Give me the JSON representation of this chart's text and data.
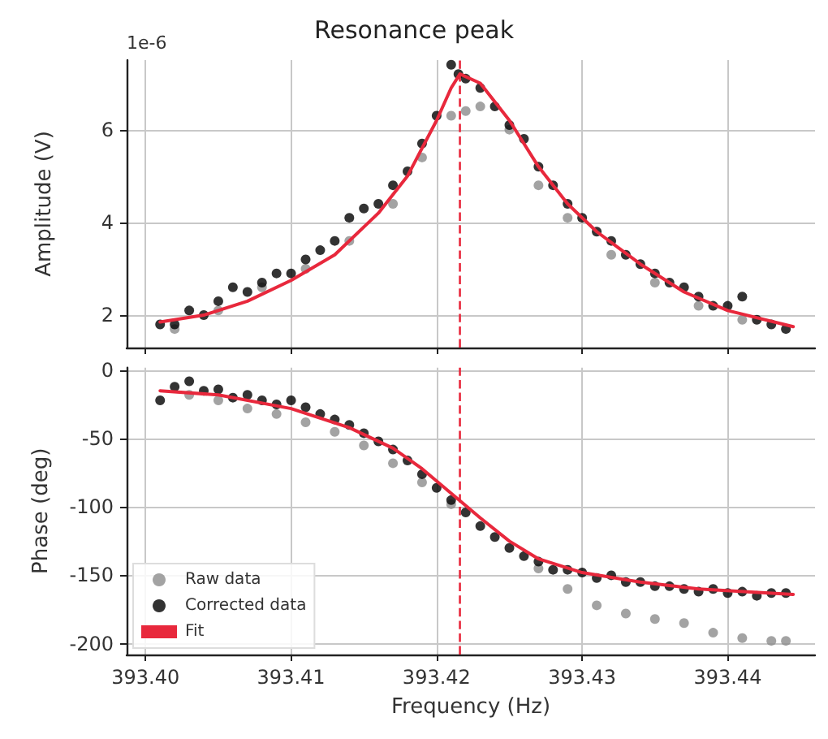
{
  "chart_data": [
    {
      "type": "scatter",
      "title": "Resonance peak",
      "ylabel": "Amplitude (V)",
      "annotations": [
        "1e-6"
      ],
      "xlim": [
        393.3987,
        393.446
      ],
      "ylim": [
        1.3,
        7.5
      ],
      "xticks": [
        393.4,
        393.41,
        393.42,
        393.43,
        393.44
      ],
      "yticks": [
        2,
        4,
        6
      ],
      "tick_labels": "y",
      "grid": true,
      "ref_lines": [
        {
          "axis": "x",
          "value": 393.4216,
          "color": "#e8283c",
          "line_style": "dashed"
        }
      ],
      "series": [
        {
          "color": "#8c8c8c",
          "marker": "circle",
          "x": [
            393.402,
            393.405,
            393.408,
            393.411,
            393.414,
            393.417,
            393.419,
            393.421,
            393.422,
            393.423,
            393.425,
            393.427,
            393.429,
            393.432,
            393.435,
            393.438,
            393.441
          ],
          "values": [
            1.7,
            2.1,
            2.6,
            3.0,
            3.6,
            4.4,
            5.4,
            6.3,
            6.4,
            6.5,
            6.0,
            4.8,
            4.1,
            3.3,
            2.7,
            2.2,
            1.9
          ]
        },
        {
          "color": "#000000",
          "marker": "circle",
          "x": [
            393.401,
            393.402,
            393.403,
            393.404,
            393.405,
            393.406,
            393.407,
            393.408,
            393.409,
            393.41,
            393.411,
            393.412,
            393.413,
            393.414,
            393.415,
            393.416,
            393.417,
            393.418,
            393.419,
            393.42,
            393.421,
            393.4215,
            393.422,
            393.423,
            393.424,
            393.425,
            393.426,
            393.427,
            393.428,
            393.429,
            393.43,
            393.431,
            393.432,
            393.433,
            393.434,
            393.435,
            393.436,
            393.437,
            393.438,
            393.439,
            393.44,
            393.441,
            393.442,
            393.443,
            393.444
          ],
          "values": [
            1.8,
            1.8,
            2.1,
            2.0,
            2.3,
            2.6,
            2.5,
            2.7,
            2.9,
            2.9,
            3.2,
            3.4,
            3.6,
            4.1,
            4.3,
            4.4,
            4.8,
            5.1,
            5.7,
            6.3,
            7.4,
            7.2,
            7.1,
            6.9,
            6.5,
            6.1,
            5.8,
            5.2,
            4.8,
            4.4,
            4.1,
            3.8,
            3.6,
            3.3,
            3.1,
            2.9,
            2.7,
            2.6,
            2.4,
            2.2,
            2.2,
            2.4,
            1.9,
            1.8,
            1.7
          ]
        },
        {
          "type": "line",
          "color": "#e8283c",
          "marker": "none",
          "x": [
            393.401,
            393.404,
            393.407,
            393.41,
            393.413,
            393.416,
            393.418,
            393.42,
            393.421,
            393.4216,
            393.423,
            393.425,
            393.427,
            393.429,
            393.431,
            393.434,
            393.437,
            393.44,
            393.4445
          ],
          "values": [
            1.85,
            2.0,
            2.3,
            2.75,
            3.3,
            4.2,
            5.0,
            6.2,
            6.9,
            7.2,
            7.0,
            6.2,
            5.2,
            4.4,
            3.8,
            3.1,
            2.5,
            2.1,
            1.75
          ]
        }
      ]
    },
    {
      "type": "scatter",
      "xlabel": "Frequency (Hz)",
      "ylabel": "Phase (deg)",
      "xlim": [
        393.3987,
        393.446
      ],
      "ylim": [
        -208,
        2
      ],
      "xticks": [
        {
          "value": 393.4,
          "label": "393.40"
        },
        {
          "value": 393.41,
          "label": "393.41"
        },
        {
          "value": 393.42,
          "label": "393.42"
        },
        {
          "value": 393.43,
          "label": "393.43"
        },
        {
          "value": 393.44,
          "label": "393.44"
        }
      ],
      "yticks": [
        0,
        -50,
        -100,
        -150,
        -200
      ],
      "grid": true,
      "legend": "bottom left",
      "ref_lines": [
        {
          "axis": "x",
          "value": 393.4216,
          "color": "#e8283c",
          "line_style": "dashed"
        }
      ],
      "series": [
        {
          "name": "Raw data",
          "color": "#8c8c8c",
          "marker": "circle",
          "x": [
            393.403,
            393.405,
            393.407,
            393.409,
            393.411,
            393.413,
            393.415,
            393.417,
            393.419,
            393.421,
            393.427,
            393.429,
            393.431,
            393.433,
            393.435,
            393.437,
            393.439,
            393.441,
            393.443,
            393.444
          ],
          "values": [
            -18,
            -22,
            -28,
            -32,
            -38,
            -45,
            -55,
            -68,
            -82,
            -98,
            -145,
            -160,
            -172,
            -178,
            -182,
            -185,
            -192,
            -196,
            -198,
            -198
          ]
        },
        {
          "name": "Corrected data",
          "color": "#000000",
          "marker": "circle",
          "x": [
            393.401,
            393.402,
            393.403,
            393.404,
            393.405,
            393.406,
            393.407,
            393.408,
            393.409,
            393.41,
            393.411,
            393.412,
            393.413,
            393.414,
            393.415,
            393.416,
            393.417,
            393.418,
            393.419,
            393.42,
            393.421,
            393.422,
            393.423,
            393.424,
            393.425,
            393.426,
            393.427,
            393.428,
            393.429,
            393.43,
            393.431,
            393.432,
            393.433,
            393.434,
            393.435,
            393.436,
            393.437,
            393.438,
            393.439,
            393.44,
            393.441,
            393.442,
            393.443,
            393.444
          ],
          "values": [
            -22,
            -12,
            -8,
            -15,
            -14,
            -20,
            -18,
            -22,
            -25,
            -22,
            -27,
            -32,
            -36,
            -40,
            -46,
            -52,
            -58,
            -66,
            -76,
            -86,
            -95,
            -104,
            -114,
            -122,
            -130,
            -136,
            -140,
            -146,
            -146,
            -148,
            -152,
            -150,
            -155,
            -155,
            -158,
            -158,
            -160,
            -162,
            -160,
            -163,
            -162,
            -165,
            -163,
            -163
          ]
        },
        {
          "name": "Fit",
          "type": "line",
          "color": "#e8283c",
          "marker": "none",
          "x": [
            393.401,
            393.405,
            393.41,
            393.414,
            393.417,
            393.419,
            393.421,
            393.423,
            393.425,
            393.427,
            393.43,
            393.434,
            393.438,
            393.4445
          ],
          "values": [
            -15,
            -18,
            -28,
            -42,
            -57,
            -72,
            -90,
            -108,
            -125,
            -138,
            -148,
            -155,
            -160,
            -164
          ]
        }
      ]
    }
  ]
}
